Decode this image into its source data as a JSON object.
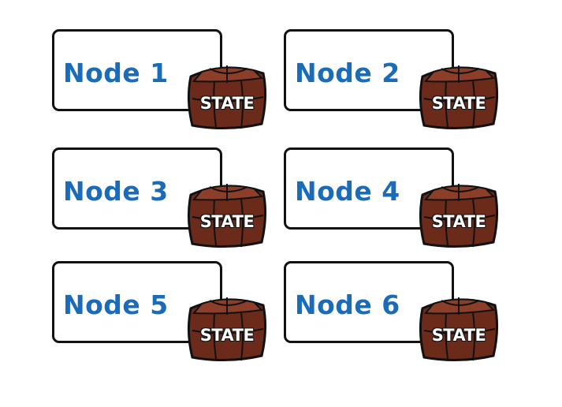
{
  "nodes": [
    {
      "label": "Node 1",
      "state": "STATE"
    },
    {
      "label": "Node 2",
      "state": "STATE"
    },
    {
      "label": "Node 3",
      "state": "STATE"
    },
    {
      "label": "Node 4",
      "state": "STATE"
    },
    {
      "label": "Node 5",
      "state": "STATE"
    },
    {
      "label": "Node 6",
      "state": "STATE"
    }
  ],
  "colors": {
    "label_text": "#1a6bb8",
    "box_border": "#111111",
    "state_box_fill": "#6b2a1a",
    "state_box_highlight": "#8c3e28",
    "state_text": "#ffffff"
  },
  "icons": {
    "state_box": "box-icon"
  }
}
